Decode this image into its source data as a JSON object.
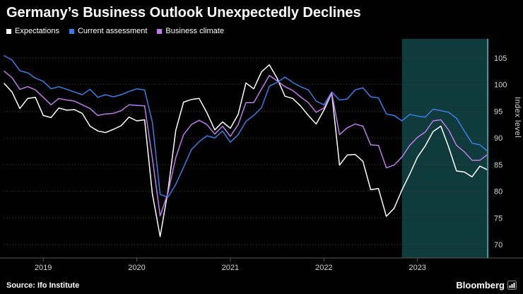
{
  "header": {
    "title": "Germany’s Business Outlook Unexpectedly Declines"
  },
  "footer": {
    "source": "Source: Ifo Institute",
    "brand": "Bloomberg"
  },
  "chart_data": {
    "type": "line",
    "title": "Germany’s Business Outlook Unexpectedly Declines",
    "xlabel": "",
    "ylabel": "Index level",
    "ylim": [
      67.5,
      107.5
    ],
    "yticks": [
      70,
      75,
      80,
      85,
      90,
      95,
      100,
      105
    ],
    "xticks": [
      "2019",
      "2020",
      "2021",
      "2022",
      "2023"
    ],
    "grid": "horizontal-dotted",
    "legend_position": "top-left",
    "axis_color": "#2aa0a0",
    "grid_color": "#404040",
    "tick_label_color": "#d6d6d6",
    "highlight": {
      "start": "2022-11",
      "fill": "#0f3b3d"
    },
    "x": [
      "2018-08",
      "2018-09",
      "2018-10",
      "2018-11",
      "2018-12",
      "2019-01",
      "2019-02",
      "2019-03",
      "2019-04",
      "2019-05",
      "2019-06",
      "2019-07",
      "2019-08",
      "2019-09",
      "2019-10",
      "2019-11",
      "2019-12",
      "2020-01",
      "2020-02",
      "2020-03",
      "2020-04",
      "2020-05",
      "2020-06",
      "2020-07",
      "2020-08",
      "2020-09",
      "2020-10",
      "2020-11",
      "2020-12",
      "2021-01",
      "2021-02",
      "2021-03",
      "2021-04",
      "2021-05",
      "2021-06",
      "2021-07",
      "2021-08",
      "2021-09",
      "2021-10",
      "2021-11",
      "2021-12",
      "2022-01",
      "2022-02",
      "2022-03",
      "2022-04",
      "2022-05",
      "2022-06",
      "2022-07",
      "2022-08",
      "2022-09",
      "2022-10",
      "2022-11",
      "2022-12",
      "2023-01",
      "2023-02",
      "2023-03",
      "2023-04",
      "2023-05",
      "2023-06",
      "2023-07",
      "2023-08",
      "2023-09",
      "2023-10"
    ],
    "series": [
      {
        "name": "Expectations",
        "color": "#ffffff",
        "values": [
          100.2,
          98.6,
          95.5,
          97.4,
          97.6,
          94.2,
          93.8,
          95.6,
          95.2,
          95.3,
          94.6,
          92.2,
          91.3,
          91.0,
          91.6,
          92.3,
          93.9,
          93.2,
          93.4,
          79.5,
          71.5,
          80.1,
          91.4,
          96.7,
          97.2,
          97.4,
          94.7,
          91.5,
          93.0,
          91.8,
          94.4,
          100.3,
          99.2,
          102.4,
          103.7,
          101.2,
          97.8,
          97.4,
          96.0,
          94.2,
          92.6,
          95.2,
          98.4,
          84.9,
          86.8,
          86.9,
          85.6,
          80.3,
          80.5,
          75.3,
          76.8,
          80.2,
          83.2,
          86.4,
          88.5,
          91.2,
          92.2,
          88.3,
          83.8,
          83.6,
          82.7,
          84.7,
          84.0
        ]
      },
      {
        "name": "Current assessment",
        "color": "#3a7de2",
        "values": [
          105.4,
          104.6,
          102.6,
          102.2,
          101.2,
          100.6,
          99.2,
          99.6,
          99.1,
          98.6,
          98.1,
          99.1,
          97.6,
          98.1,
          97.7,
          98.1,
          98.7,
          99.2,
          99.0,
          92.9,
          79.4,
          78.9,
          81.3,
          84.5,
          87.8,
          89.3,
          90.4,
          90.0,
          91.3,
          89.2,
          90.6,
          93.1,
          94.2,
          95.7,
          99.7,
          100.4,
          101.4,
          100.4,
          99.6,
          99.0,
          96.9,
          96.2,
          98.6,
          97.1,
          97.3,
          99.0,
          99.4,
          97.7,
          97.5,
          94.5,
          94.2,
          93.2,
          94.4,
          94.1,
          93.9,
          95.4,
          95.1,
          94.8,
          93.7,
          91.3,
          89.0,
          88.7,
          87.5
        ]
      },
      {
        "name": "Business climate",
        "color": "#bf7bea",
        "values": [
          102.5,
          101.3,
          99.1,
          99.6,
          99.0,
          97.6,
          96.2,
          97.4,
          97.1,
          96.9,
          96.2,
          95.5,
          94.2,
          94.5,
          94.6,
          95.1,
          96.2,
          96.1,
          96.0,
          86.2,
          75.4,
          79.7,
          86.3,
          90.6,
          92.5,
          93.3,
          92.5,
          90.7,
          92.2,
          90.3,
          92.5,
          96.6,
          96.6,
          99.2,
          101.7,
          100.7,
          99.6,
          98.9,
          97.7,
          96.6,
          94.8,
          95.6,
          98.5,
          90.6,
          91.9,
          92.6,
          92.2,
          88.7,
          88.6,
          84.4,
          84.9,
          86.4,
          88.6,
          90.1,
          91.1,
          93.2,
          93.4,
          91.5,
          88.6,
          87.4,
          85.8,
          85.8,
          86.9
        ]
      }
    ]
  }
}
